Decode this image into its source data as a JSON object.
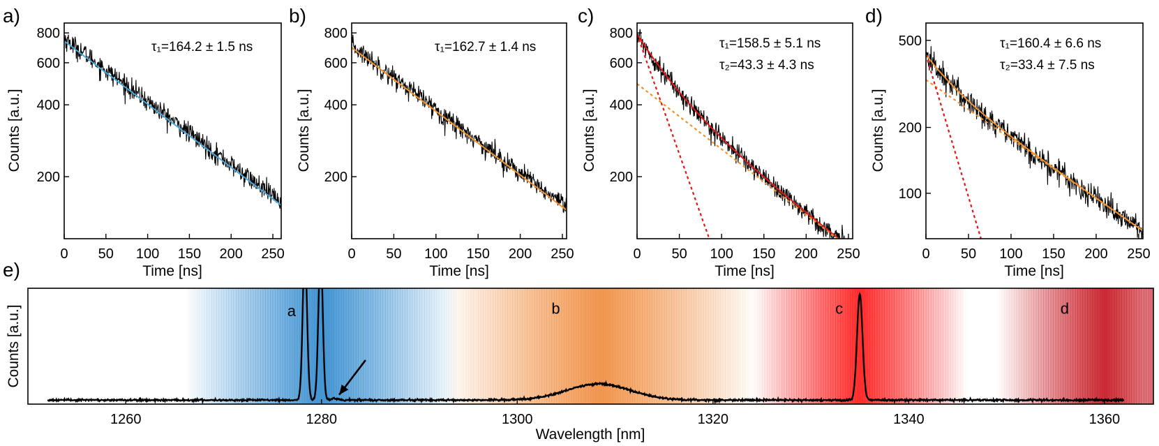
{
  "chart_data": [
    {
      "panel_label": "a)",
      "type": "line",
      "xlabel": "Time [ns]",
      "ylabel": "Counts [a.u.]",
      "y_scale": "log",
      "xlim": [
        0,
        260
      ],
      "ylim": [
        110,
        880
      ],
      "x_ticks": [
        0,
        50,
        100,
        150,
        200,
        250
      ],
      "x_tick_labels": [
        "0",
        "50",
        "100",
        "150",
        "200",
        "250"
      ],
      "y_ticks": [
        200,
        400,
        600,
        800
      ],
      "y_tick_labels": [
        "200",
        "400",
        "600",
        "800"
      ],
      "annotations": [
        "τ₁=164.2 ± 1.5 ns"
      ],
      "series": [
        {
          "kind": "data",
          "color": "#000000",
          "start_counts": 760,
          "tau_ns": 164.2,
          "noise": 0.05
        },
        {
          "kind": "fit",
          "color": "#4aa8d8",
          "start_counts": 740,
          "tau_ns": 164.2
        }
      ]
    },
    {
      "panel_label": "b)",
      "type": "line",
      "xlabel": "Time [ns]",
      "ylabel": "Counts [a.u.]",
      "y_scale": "log",
      "xlim": [
        0,
        255
      ],
      "ylim": [
        110,
        880
      ],
      "x_ticks": [
        0,
        50,
        100,
        150,
        200,
        250
      ],
      "x_tick_labels": [
        "0",
        "50",
        "100",
        "150",
        "200",
        "250"
      ],
      "y_ticks": [
        200,
        400,
        600,
        800
      ],
      "y_tick_labels": [
        "200",
        "400",
        "600",
        "800"
      ],
      "annotations": [
        "τ₁=162.7 ± 1.4 ns"
      ],
      "series": [
        {
          "kind": "data",
          "color": "#000000",
          "start_counts": 710,
          "tau_ns": 162.7,
          "noise": 0.05
        },
        {
          "kind": "fit",
          "color": "#f0932d",
          "start_counts": 695,
          "tau_ns": 162.7
        }
      ]
    },
    {
      "panel_label": "c)",
      "type": "line",
      "xlabel": "Time [ns]",
      "ylabel": "Counts [a.u.]",
      "y_scale": "log",
      "xlim": [
        0,
        255
      ],
      "ylim": [
        110,
        880
      ],
      "x_ticks": [
        0,
        50,
        100,
        150,
        200,
        250
      ],
      "x_tick_labels": [
        "0",
        "50",
        "100",
        "150",
        "200",
        "250"
      ],
      "y_ticks": [
        200,
        400,
        600,
        800
      ],
      "y_tick_labels": [
        "200",
        "400",
        "600",
        "800"
      ],
      "annotations": [
        "τ₁=158.5 ± 5.1 ns",
        "τ₂=43.3 ± 4.3 ns"
      ],
      "series": [
        {
          "kind": "data",
          "color": "#000000",
          "components": [
            [
              490,
              158.5
            ],
            [
              300,
              43.3
            ]
          ],
          "noise": 0.05
        },
        {
          "kind": "fit",
          "color": "#e01818",
          "components": [
            [
              490,
              158.5
            ],
            [
              300,
              43.3
            ]
          ]
        },
        {
          "kind": "component",
          "color": "#f0932d",
          "dashed": true,
          "start_counts": 490,
          "tau_ns": 158.5
        },
        {
          "kind": "component",
          "color": "#e01818",
          "dashed": true,
          "start_counts": 790,
          "tau_ns": 43.3
        }
      ]
    },
    {
      "panel_label": "d)",
      "type": "line",
      "xlabel": "Time [ns]",
      "ylabel": "Counts [a.u.]",
      "y_scale": "log",
      "xlim": [
        0,
        255
      ],
      "ylim": [
        62,
        600
      ],
      "x_ticks": [
        0,
        50,
        100,
        150,
        200,
        250
      ],
      "x_tick_labels": [
        "0",
        "50",
        "100",
        "150",
        "200",
        "250"
      ],
      "y_ticks": [
        100,
        200,
        500
      ],
      "y_tick_labels": [
        "100",
        "200",
        "500"
      ],
      "annotations": [
        "τ₁=160.4 ± 6.6 ns",
        "τ₂=33.4 ± 7.5 ns"
      ],
      "series": [
        {
          "kind": "data",
          "color": "#000000",
          "components": [
            [
              330,
              160.4
            ],
            [
              100,
              33.4
            ]
          ],
          "noise": 0.07
        },
        {
          "kind": "fit",
          "color": "#f0932d",
          "components": [
            [
              330,
              160.4
            ],
            [
              100,
              33.4
            ]
          ]
        },
        {
          "kind": "component",
          "color": "#f0932d",
          "dashed": true,
          "start_counts": 330,
          "tau_ns": 160.4
        },
        {
          "kind": "component",
          "color": "#e01818",
          "dashed": true,
          "start_counts": 430,
          "tau_ns": 33.4
        }
      ]
    },
    {
      "panel_label": "e)",
      "type": "line",
      "xlabel": "Wavelength [nm]",
      "ylabel": "Counts [a.u.]",
      "xlim": [
        1250,
        1365
      ],
      "ylim": [
        0,
        1
      ],
      "x_ticks": [
        1260,
        1280,
        1300,
        1320,
        1340,
        1360
      ],
      "x_tick_labels": [
        "1260",
        "1280",
        "1300",
        "1320",
        "1340",
        "1360"
      ],
      "y_tick_labels": [],
      "background_bands": [
        {
          "label": "a",
          "center_nm": 1280,
          "halfwidth_nm": 14,
          "color": "#3a8fd0"
        },
        {
          "label": "b",
          "center_nm": 1308.5,
          "halfwidth_nm": 16,
          "color": "#f09045"
        },
        {
          "label": "c",
          "center_nm": 1335,
          "halfwidth_nm": 11,
          "color": "#ff2222"
        },
        {
          "label": "d",
          "center_nm": 1360,
          "halfwidth_nm": 11,
          "color": "#c8202a",
          "edge_level": 0.65
        }
      ],
      "band_labels": [
        {
          "text": "a",
          "x_nm": 1276.5,
          "y": 0.76
        },
        {
          "text": "b",
          "x_nm": 1303.5,
          "y": 0.78
        },
        {
          "text": "c",
          "x_nm": 1332.5,
          "y": 0.78
        },
        {
          "text": "d",
          "x_nm": 1355.5,
          "y": 0.78
        }
      ],
      "spectrum": {
        "color": "#000000",
        "baseline": 0.035,
        "x_range": [
          1252,
          1362
        ],
        "peaks": [
          {
            "center_nm": 1278.3,
            "amplitude": 1.3,
            "width_nm": 0.22
          },
          {
            "center_nm": 1279.9,
            "amplitude": 1.3,
            "width_nm": 0.22
          },
          {
            "center_nm": 1281.3,
            "amplitude": 0.015,
            "width_nm": 0.3
          },
          {
            "center_nm": 1308.3,
            "amplitude": 0.14,
            "width_nm": 3.2
          },
          {
            "center_nm": 1335.0,
            "amplitude": 0.92,
            "width_nm": 0.28
          }
        ]
      },
      "arrow": {
        "from": [
          1284.5,
          0.38
        ],
        "to": [
          1281.8,
          0.08
        ]
      }
    }
  ]
}
